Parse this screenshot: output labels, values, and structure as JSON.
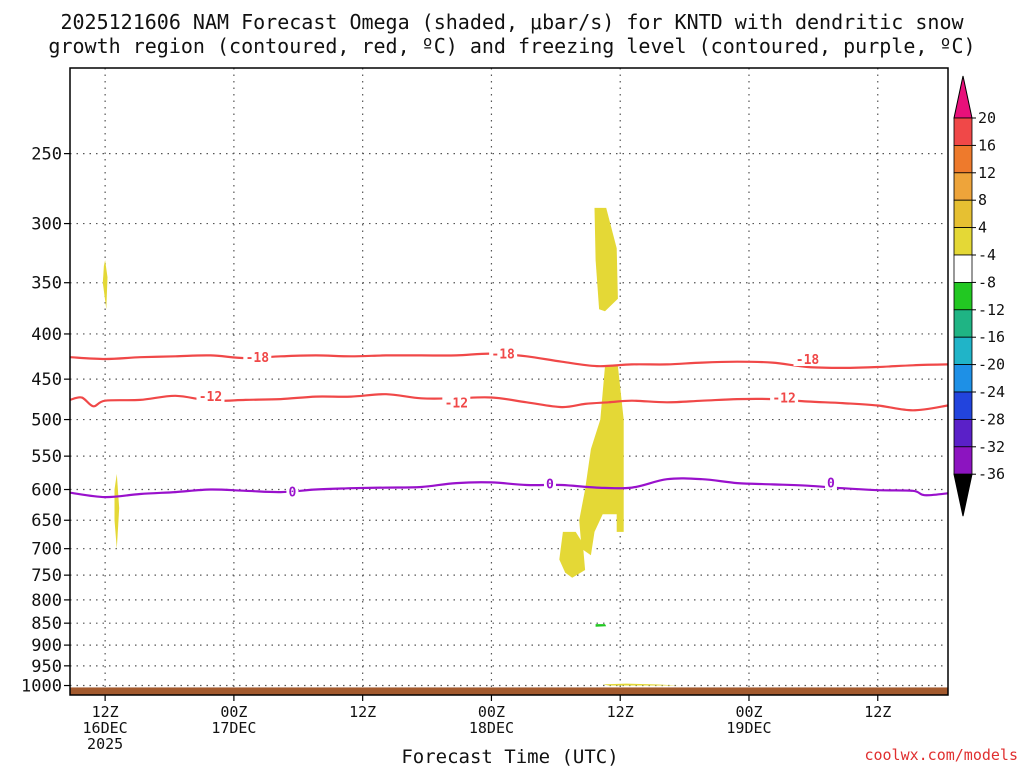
{
  "chart_data": {
    "type": "contour",
    "title": "2025121606 NAM Forecast Omega (shaded, μbar/s) for KNTD with dendritic snow",
    "title_line2": "growth region (contoured, red, ºC) and freezing level (contoured, purple, ºC)",
    "xlabel": "Forecast Time (UTC)",
    "credit": "coolwx.com/models",
    "y_axis": {
      "ticks": [
        250,
        300,
        350,
        400,
        450,
        500,
        550,
        600,
        650,
        700,
        750,
        800,
        850,
        900,
        950,
        1000
      ],
      "range_hpa": [
        200,
        1025
      ]
    },
    "x_axis": {
      "range_hours": [
        9,
        84
      ],
      "ticks": [
        {
          "hour": 12,
          "lines": [
            "12Z",
            "16DEC",
            "2025"
          ]
        },
        {
          "hour": 23,
          "lines": [
            "00Z",
            "17DEC"
          ]
        },
        {
          "hour": 34,
          "lines": [
            "12Z"
          ]
        },
        {
          "hour": 45,
          "lines": [
            "00Z",
            "18DEC"
          ]
        },
        {
          "hour": 56,
          "lines": [
            "12Z"
          ]
        },
        {
          "hour": 67,
          "lines": [
            "00Z",
            "19DEC"
          ]
        },
        {
          "hour": 78,
          "lines": [
            "12Z"
          ]
        }
      ]
    },
    "contours": [
      {
        "name": "-18C",
        "label": "-18",
        "color": "#f04848",
        "points": [
          [
            9,
            425
          ],
          [
            12,
            427
          ],
          [
            15,
            425
          ],
          [
            18,
            424
          ],
          [
            21,
            423
          ],
          [
            24,
            426
          ],
          [
            27,
            424
          ],
          [
            30,
            423
          ],
          [
            33,
            424
          ],
          [
            36,
            423
          ],
          [
            39,
            423
          ],
          [
            42,
            423
          ],
          [
            45,
            421
          ],
          [
            48,
            424
          ],
          [
            51,
            430
          ],
          [
            54,
            435
          ],
          [
            57,
            433
          ],
          [
            60,
            433
          ],
          [
            63,
            431
          ],
          [
            66,
            430
          ],
          [
            69,
            431
          ],
          [
            72,
            436
          ],
          [
            75,
            437
          ],
          [
            78,
            436
          ],
          [
            81,
            434
          ],
          [
            84,
            433
          ]
        ],
        "label_points": [
          [
            25,
            425
          ],
          [
            46,
            421
          ],
          [
            72,
            427
          ]
        ]
      },
      {
        "name": "-12C",
        "label": "-12",
        "color": "#f04848",
        "points": [
          [
            9,
            475
          ],
          [
            10,
            472
          ],
          [
            11,
            483
          ],
          [
            12,
            476
          ],
          [
            15,
            475
          ],
          [
            18,
            470
          ],
          [
            21,
            476
          ],
          [
            24,
            475
          ],
          [
            27,
            474
          ],
          [
            30,
            471
          ],
          [
            33,
            471
          ],
          [
            36,
            468
          ],
          [
            39,
            473
          ],
          [
            42,
            473
          ],
          [
            45,
            472
          ],
          [
            48,
            478
          ],
          [
            51,
            484
          ],
          [
            53,
            480
          ],
          [
            55,
            478
          ],
          [
            57,
            476
          ],
          [
            60,
            478
          ],
          [
            63,
            476
          ],
          [
            66,
            474
          ],
          [
            69,
            474
          ],
          [
            72,
            477
          ],
          [
            75,
            479
          ],
          [
            78,
            482
          ],
          [
            81,
            488
          ],
          [
            84,
            482
          ]
        ],
        "label_points": [
          [
            21,
            470
          ],
          [
            42,
            478
          ],
          [
            70,
            472
          ]
        ]
      },
      {
        "name": "0C",
        "label": "0",
        "color": "#9911cc",
        "points": [
          [
            9,
            605
          ],
          [
            12,
            612
          ],
          [
            15,
            607
          ],
          [
            18,
            604
          ],
          [
            21,
            600
          ],
          [
            24,
            602
          ],
          [
            27,
            604
          ],
          [
            30,
            600
          ],
          [
            33,
            598
          ],
          [
            36,
            597
          ],
          [
            39,
            596
          ],
          [
            42,
            590
          ],
          [
            45,
            589
          ],
          [
            48,
            593
          ],
          [
            51,
            593
          ],
          [
            54,
            597
          ],
          [
            57,
            597
          ],
          [
            60,
            584
          ],
          [
            63,
            584
          ],
          [
            66,
            590
          ],
          [
            69,
            592
          ],
          [
            72,
            594
          ],
          [
            75,
            598
          ],
          [
            78,
            601
          ],
          [
            81,
            602
          ],
          [
            82,
            609
          ],
          [
            84,
            606
          ]
        ],
        "label_points": [
          [
            28,
            603
          ],
          [
            50,
            591
          ],
          [
            74,
            589
          ]
        ]
      }
    ],
    "shading": [
      {
        "value_range": "4 to 8",
        "color": "#e4d836",
        "regions": [
          [
            [
              12,
              330
            ],
            [
              12.2,
              345
            ],
            [
              12.1,
              375
            ],
            [
              11.8,
              350
            ],
            [
              11.9,
              335
            ]
          ],
          [
            [
              13,
              576
            ],
            [
              13.2,
              630
            ],
            [
              13,
              700
            ],
            [
              12.8,
              650
            ],
            [
              12.8,
              600
            ]
          ],
          [
            [
              53.8,
              288
            ],
            [
              54.8,
              288
            ],
            [
              55.7,
              320
            ],
            [
              55.8,
              365
            ],
            [
              54.7,
              377
            ],
            [
              54.2,
              375
            ],
            [
              53.9,
              330
            ]
          ],
          [
            [
              51.1,
              670
            ],
            [
              52.2,
              670
            ],
            [
              52.8,
              690
            ],
            [
              53,
              740
            ],
            [
              51.9,
              755
            ],
            [
              51.3,
              745
            ],
            [
              50.8,
              720
            ]
          ],
          [
            [
              54.7,
              435
            ],
            [
              55.8,
              435
            ],
            [
              56.3,
              500
            ],
            [
              56.3,
              600
            ],
            [
              56.3,
              670
            ],
            [
              55.7,
              670
            ],
            [
              55.7,
              640
            ],
            [
              54.5,
              640
            ],
            [
              53.8,
              670
            ],
            [
              53.5,
              712
            ],
            [
              52.7,
              700
            ],
            [
              52.5,
              650
            ],
            [
              53,
              600
            ],
            [
              53.5,
              540
            ],
            [
              54.3,
              500
            ]
          ],
          [
            [
              54.5,
              997
            ],
            [
              56.5,
              995
            ],
            [
              59,
              997
            ],
            [
              61,
              1000
            ],
            [
              55,
              1000
            ]
          ]
        ]
      },
      {
        "value_range": "-8 to -4",
        "color": "#22c822",
        "regions": [
          [
            [
              53.9,
              852
            ],
            [
              54.7,
              852
            ],
            [
              54.8,
              857
            ],
            [
              53.9,
              858
            ]
          ]
        ]
      }
    ],
    "terrain": {
      "color": "#a35a2e",
      "surface_hpa": 1005
    },
    "colorbar": {
      "levels": [
        20,
        16,
        12,
        8,
        4,
        -4,
        -8,
        -12,
        -16,
        -20,
        -24,
        -28,
        -32,
        -36
      ],
      "colors": [
        "#f04848",
        "#ee7a2c",
        "#eea43a",
        "#e6c032",
        "#e4d836",
        "#ffffff",
        "#22c822",
        "#1fb484",
        "#20b4c8",
        "#1e90e6",
        "#2244dd",
        "#5a20c8",
        "#8c14c0",
        "#a8a8a8"
      ],
      "top_arrow_color": "#e8107a",
      "bottom_arrow_color": "#000000"
    }
  }
}
